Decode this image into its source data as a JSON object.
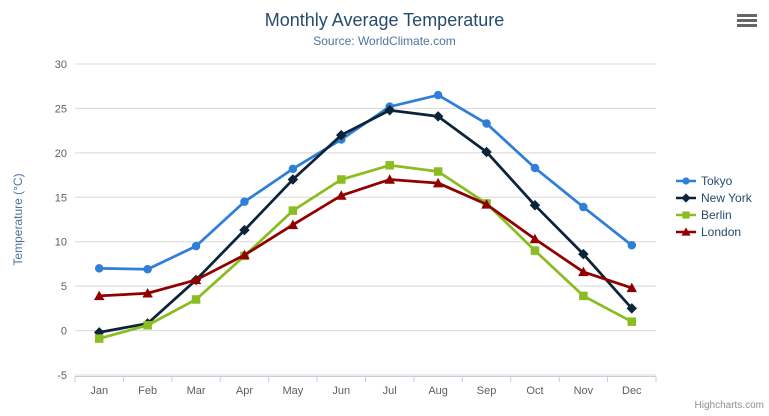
{
  "chart_data": {
    "type": "line",
    "title": "Monthly Average Temperature",
    "subtitle": "Source: WorldClimate.com",
    "xlabel": "",
    "ylabel": "Temperature (°C)",
    "ylim": [
      -5,
      30
    ],
    "y_tick_interval": 5,
    "grid": true,
    "legend_position": "right",
    "categories": [
      "Jan",
      "Feb",
      "Mar",
      "Apr",
      "May",
      "Jun",
      "Jul",
      "Aug",
      "Sep",
      "Oct",
      "Nov",
      "Dec"
    ],
    "series": [
      {
        "name": "Tokyo",
        "color": "#2f7ed8",
        "marker": "circle",
        "values": [
          7.0,
          6.9,
          9.5,
          14.5,
          18.2,
          21.5,
          25.2,
          26.5,
          23.3,
          18.3,
          13.9,
          9.6
        ]
      },
      {
        "name": "New York",
        "color": "#0d233a",
        "marker": "diamond",
        "values": [
          -0.2,
          0.8,
          5.7,
          11.3,
          17.0,
          22.0,
          24.8,
          24.1,
          20.1,
          14.1,
          8.6,
          2.5
        ]
      },
      {
        "name": "Berlin",
        "color": "#8bbc21",
        "marker": "square",
        "values": [
          -0.9,
          0.6,
          3.5,
          8.4,
          13.5,
          17.0,
          18.6,
          17.9,
          14.3,
          9.0,
          3.9,
          1.0
        ]
      },
      {
        "name": "London",
        "color": "#910000",
        "marker": "triangle",
        "values": [
          3.9,
          4.2,
          5.7,
          8.5,
          11.9,
          15.2,
          17.0,
          16.6,
          14.2,
          10.3,
          6.6,
          4.8
        ]
      }
    ]
  },
  "export_menu": {
    "icon": "hamburger-menu-icon"
  },
  "credit": {
    "label": "Highcharts.com"
  }
}
